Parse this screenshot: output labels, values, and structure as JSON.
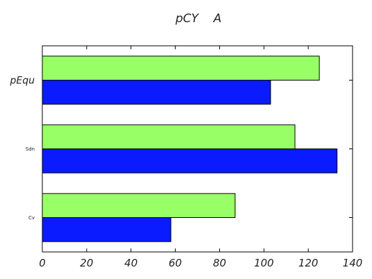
{
  "chart_data": {
    "type": "bar",
    "orientation": "horizontal",
    "title": "pCY    A",
    "xlabel": "",
    "ylabel": "",
    "categories": [
      "Cv",
      "Sdn",
      "pEqu"
    ],
    "series": [
      {
        "values": [
          58,
          133,
          103
        ],
        "color": "#0a1cff"
      },
      {
        "values": [
          87,
          114,
          125
        ],
        "color": "#99ff66"
      }
    ],
    "xlim": [
      0,
      140
    ],
    "xticks": [
      0,
      20,
      40,
      60,
      80,
      100,
      120,
      140
    ],
    "grid": false,
    "legend": "none"
  }
}
